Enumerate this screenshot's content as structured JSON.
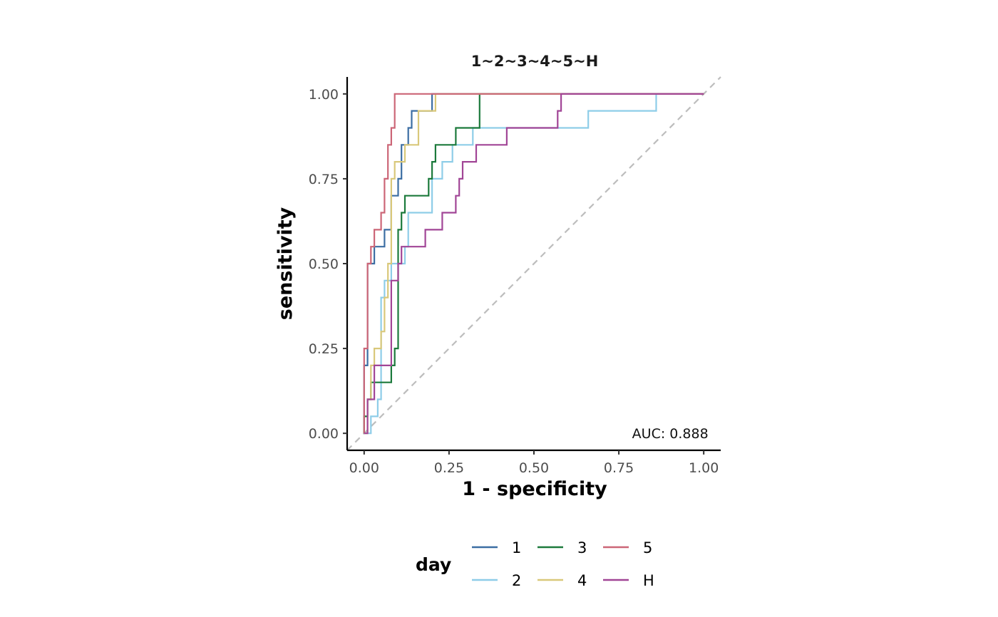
{
  "chart_data": {
    "type": "line",
    "title": "1~2~3~4~5~H",
    "xlabel": "1 - specificity",
    "ylabel": "sensitivity",
    "xlim": [
      -0.05,
      1.05
    ],
    "ylim": [
      -0.05,
      1.05
    ],
    "x_ticks": [
      0.0,
      0.25,
      0.5,
      0.75,
      1.0
    ],
    "x_tick_labels": [
      "0.00",
      "0.25",
      "0.50",
      "0.75",
      "1.00"
    ],
    "y_ticks": [
      0.0,
      0.25,
      0.5,
      0.75,
      1.0
    ],
    "y_tick_labels": [
      "0.00",
      "0.25",
      "0.50",
      "0.75",
      "1.00"
    ],
    "grid": false,
    "diagonal_reference": {
      "from": [
        0,
        0
      ],
      "to": [
        1,
        1
      ],
      "style": "dashed",
      "color": "#bdbdbd"
    },
    "annotation": {
      "text": "AUC: 0.888",
      "x": 0.81,
      "y": 0.0
    },
    "legend": {
      "title": "day",
      "position": "bottom"
    },
    "series": [
      {
        "name": "1",
        "color": "#3c6ea3",
        "points": [
          [
            0,
            0
          ],
          [
            0,
            0.2
          ],
          [
            0.01,
            0.2
          ],
          [
            0.01,
            0.5
          ],
          [
            0.03,
            0.5
          ],
          [
            0.03,
            0.55
          ],
          [
            0.06,
            0.55
          ],
          [
            0.06,
            0.6
          ],
          [
            0.08,
            0.6
          ],
          [
            0.08,
            0.7
          ],
          [
            0.1,
            0.7
          ],
          [
            0.1,
            0.75
          ],
          [
            0.11,
            0.75
          ],
          [
            0.11,
            0.85
          ],
          [
            0.13,
            0.85
          ],
          [
            0.13,
            0.9
          ],
          [
            0.14,
            0.9
          ],
          [
            0.14,
            0.95
          ],
          [
            0.2,
            0.95
          ],
          [
            0.2,
            1.0
          ],
          [
            1.0,
            1.0
          ]
        ]
      },
      {
        "name": "2",
        "color": "#8ecde8",
        "points": [
          [
            0,
            0
          ],
          [
            0.02,
            0
          ],
          [
            0.02,
            0.05
          ],
          [
            0.04,
            0.05
          ],
          [
            0.04,
            0.1
          ],
          [
            0.05,
            0.1
          ],
          [
            0.05,
            0.4
          ],
          [
            0.06,
            0.4
          ],
          [
            0.06,
            0.45
          ],
          [
            0.08,
            0.45
          ],
          [
            0.08,
            0.5
          ],
          [
            0.12,
            0.5
          ],
          [
            0.12,
            0.55
          ],
          [
            0.13,
            0.55
          ],
          [
            0.13,
            0.65
          ],
          [
            0.2,
            0.65
          ],
          [
            0.2,
            0.75
          ],
          [
            0.23,
            0.75
          ],
          [
            0.23,
            0.8
          ],
          [
            0.26,
            0.8
          ],
          [
            0.26,
            0.85
          ],
          [
            0.32,
            0.85
          ],
          [
            0.32,
            0.9
          ],
          [
            0.66,
            0.9
          ],
          [
            0.66,
            0.95
          ],
          [
            0.86,
            0.95
          ],
          [
            0.86,
            1.0
          ],
          [
            1.0,
            1.0
          ]
        ]
      },
      {
        "name": "3",
        "color": "#1c7a3c",
        "points": [
          [
            0,
            0
          ],
          [
            0,
            0.05
          ],
          [
            0.01,
            0.05
          ],
          [
            0.01,
            0.1
          ],
          [
            0.02,
            0.1
          ],
          [
            0.02,
            0.15
          ],
          [
            0.08,
            0.15
          ],
          [
            0.08,
            0.2
          ],
          [
            0.09,
            0.2
          ],
          [
            0.09,
            0.25
          ],
          [
            0.1,
            0.25
          ],
          [
            0.1,
            0.6
          ],
          [
            0.11,
            0.6
          ],
          [
            0.11,
            0.65
          ],
          [
            0.12,
            0.65
          ],
          [
            0.12,
            0.7
          ],
          [
            0.19,
            0.7
          ],
          [
            0.19,
            0.75
          ],
          [
            0.2,
            0.75
          ],
          [
            0.2,
            0.8
          ],
          [
            0.21,
            0.8
          ],
          [
            0.21,
            0.85
          ],
          [
            0.27,
            0.85
          ],
          [
            0.27,
            0.9
          ],
          [
            0.34,
            0.9
          ],
          [
            0.34,
            1.0
          ],
          [
            1.0,
            1.0
          ]
        ]
      },
      {
        "name": "4",
        "color": "#d9c87a",
        "points": [
          [
            0,
            0
          ],
          [
            0.01,
            0
          ],
          [
            0.01,
            0.1
          ],
          [
            0.02,
            0.1
          ],
          [
            0.02,
            0.2
          ],
          [
            0.03,
            0.2
          ],
          [
            0.03,
            0.25
          ],
          [
            0.05,
            0.25
          ],
          [
            0.05,
            0.3
          ],
          [
            0.06,
            0.3
          ],
          [
            0.06,
            0.4
          ],
          [
            0.07,
            0.4
          ],
          [
            0.07,
            0.5
          ],
          [
            0.08,
            0.5
          ],
          [
            0.08,
            0.75
          ],
          [
            0.09,
            0.75
          ],
          [
            0.09,
            0.8
          ],
          [
            0.12,
            0.8
          ],
          [
            0.12,
            0.85
          ],
          [
            0.16,
            0.85
          ],
          [
            0.16,
            0.95
          ],
          [
            0.21,
            0.95
          ],
          [
            0.21,
            1.0
          ],
          [
            1.0,
            1.0
          ]
        ]
      },
      {
        "name": "5",
        "color": "#cc6677",
        "points": [
          [
            0,
            0
          ],
          [
            0,
            0.25
          ],
          [
            0.01,
            0.25
          ],
          [
            0.01,
            0.5
          ],
          [
            0.02,
            0.5
          ],
          [
            0.02,
            0.55
          ],
          [
            0.03,
            0.55
          ],
          [
            0.03,
            0.6
          ],
          [
            0.05,
            0.6
          ],
          [
            0.05,
            0.65
          ],
          [
            0.06,
            0.65
          ],
          [
            0.06,
            0.75
          ],
          [
            0.07,
            0.75
          ],
          [
            0.07,
            0.85
          ],
          [
            0.08,
            0.85
          ],
          [
            0.08,
            0.9
          ],
          [
            0.09,
            0.9
          ],
          [
            0.09,
            1.0
          ],
          [
            1.0,
            1.0
          ]
        ]
      },
      {
        "name": "H",
        "color": "#a14596",
        "points": [
          [
            0,
            0
          ],
          [
            0.01,
            0
          ],
          [
            0.01,
            0.1
          ],
          [
            0.03,
            0.1
          ],
          [
            0.03,
            0.2
          ],
          [
            0.08,
            0.2
          ],
          [
            0.08,
            0.45
          ],
          [
            0.1,
            0.45
          ],
          [
            0.1,
            0.5
          ],
          [
            0.11,
            0.5
          ],
          [
            0.11,
            0.55
          ],
          [
            0.18,
            0.55
          ],
          [
            0.18,
            0.6
          ],
          [
            0.23,
            0.6
          ],
          [
            0.23,
            0.65
          ],
          [
            0.27,
            0.65
          ],
          [
            0.27,
            0.7
          ],
          [
            0.28,
            0.7
          ],
          [
            0.28,
            0.75
          ],
          [
            0.29,
            0.75
          ],
          [
            0.29,
            0.8
          ],
          [
            0.33,
            0.8
          ],
          [
            0.33,
            0.85
          ],
          [
            0.42,
            0.85
          ],
          [
            0.42,
            0.9
          ],
          [
            0.57,
            0.9
          ],
          [
            0.57,
            0.95
          ],
          [
            0.58,
            0.95
          ],
          [
            0.58,
            1.0
          ],
          [
            1.0,
            1.0
          ]
        ]
      }
    ]
  }
}
